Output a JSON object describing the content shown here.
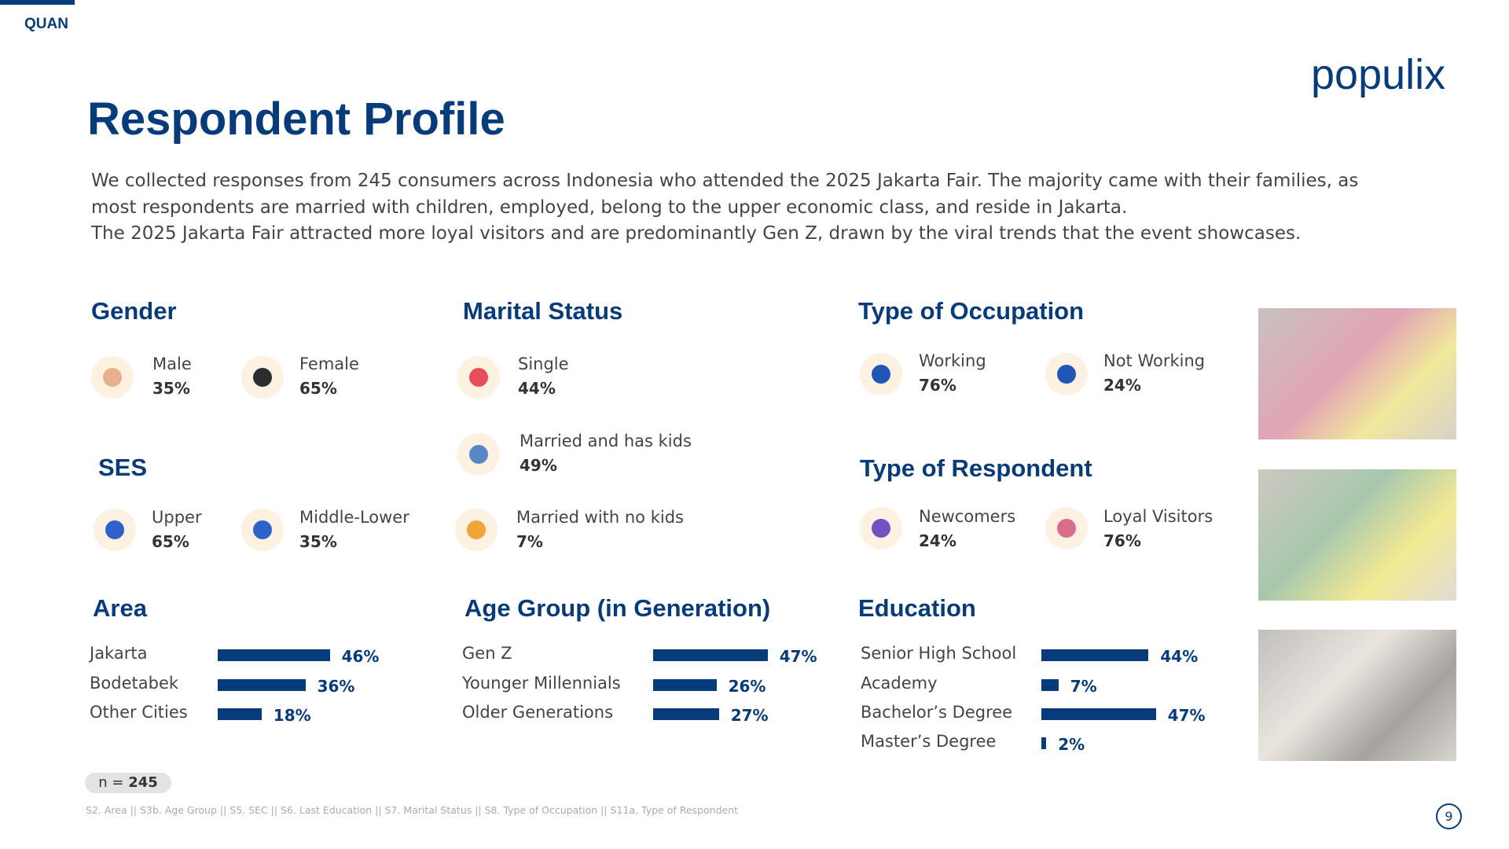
{
  "badge": "QUAN",
  "logo": "populix",
  "title": "Respondent Profile",
  "intro": [
    "We collected responses from 245 consumers across Indonesia who attended the 2025 Jakarta Fair. The majority came with their families, as most respondents are married with children, employed, belong to the upper economic class, and reside in Jakarta.",
    "The 2025 Jakarta Fair attracted more loyal visitors and are predominantly Gen Z, drawn by the viral trends that the event showcases."
  ],
  "stat_groups": [
    {
      "heading": "Gender",
      "items": [
        {
          "label": "Male",
          "value": "35%"
        },
        {
          "label": "Female",
          "value": "65%"
        }
      ]
    },
    {
      "heading": "SES",
      "items": [
        {
          "label": "Upper",
          "value": "65%"
        },
        {
          "label": "Middle-Lower",
          "value": "35%"
        }
      ]
    },
    {
      "heading": "Marital Status",
      "items": [
        {
          "label": "Single",
          "value": "44%"
        },
        {
          "label": "Married and has kids",
          "value": "49%"
        },
        {
          "label": "Married with no kids",
          "value": "7%"
        }
      ]
    },
    {
      "heading": "Type of Occupation",
      "items": [
        {
          "label": "Working",
          "value": "76%"
        },
        {
          "label": "Not Working",
          "value": "24%"
        }
      ]
    },
    {
      "heading": "Type of Respondent",
      "items": [
        {
          "label": "Newcomers",
          "value": "24%"
        },
        {
          "label": "Loyal Visitors",
          "value": "76%"
        }
      ]
    }
  ],
  "bar_groups": [
    {
      "heading": "Area",
      "items": [
        {
          "label": "Jakarta",
          "value": 46,
          "value_label": "46%"
        },
        {
          "label": "Bodetabek",
          "value": 36,
          "value_label": "36%"
        },
        {
          "label": "Other Cities",
          "value": 18,
          "value_label": "18%"
        }
      ]
    },
    {
      "heading": "Age Group (in Generation)",
      "items": [
        {
          "label": "Gen Z",
          "value": 47,
          "value_label": "47%"
        },
        {
          "label": "Younger Millennials",
          "value": 26,
          "value_label": "26%"
        },
        {
          "label": "Older Generations",
          "value": 27,
          "value_label": "27%"
        }
      ]
    },
    {
      "heading": "Education",
      "items": [
        {
          "label": "Senior High School",
          "value": 44,
          "value_label": "44%"
        },
        {
          "label": "Academy",
          "value": 7,
          "value_label": "7%"
        },
        {
          "label": "Bachelor’s Degree",
          "value": 47,
          "value_label": "47%"
        },
        {
          "label": "Master’s Degree",
          "value": 2,
          "value_label": "2%"
        }
      ]
    }
  ],
  "sample": {
    "label": "n =",
    "value": "245"
  },
  "footnote": "S2. Area || S3b. Age Group || S5. SEC || S6. Last Education || S7. Marital Status || S8. Type of Occupation || S11a, Type of Respondent",
  "page_number": "9"
}
